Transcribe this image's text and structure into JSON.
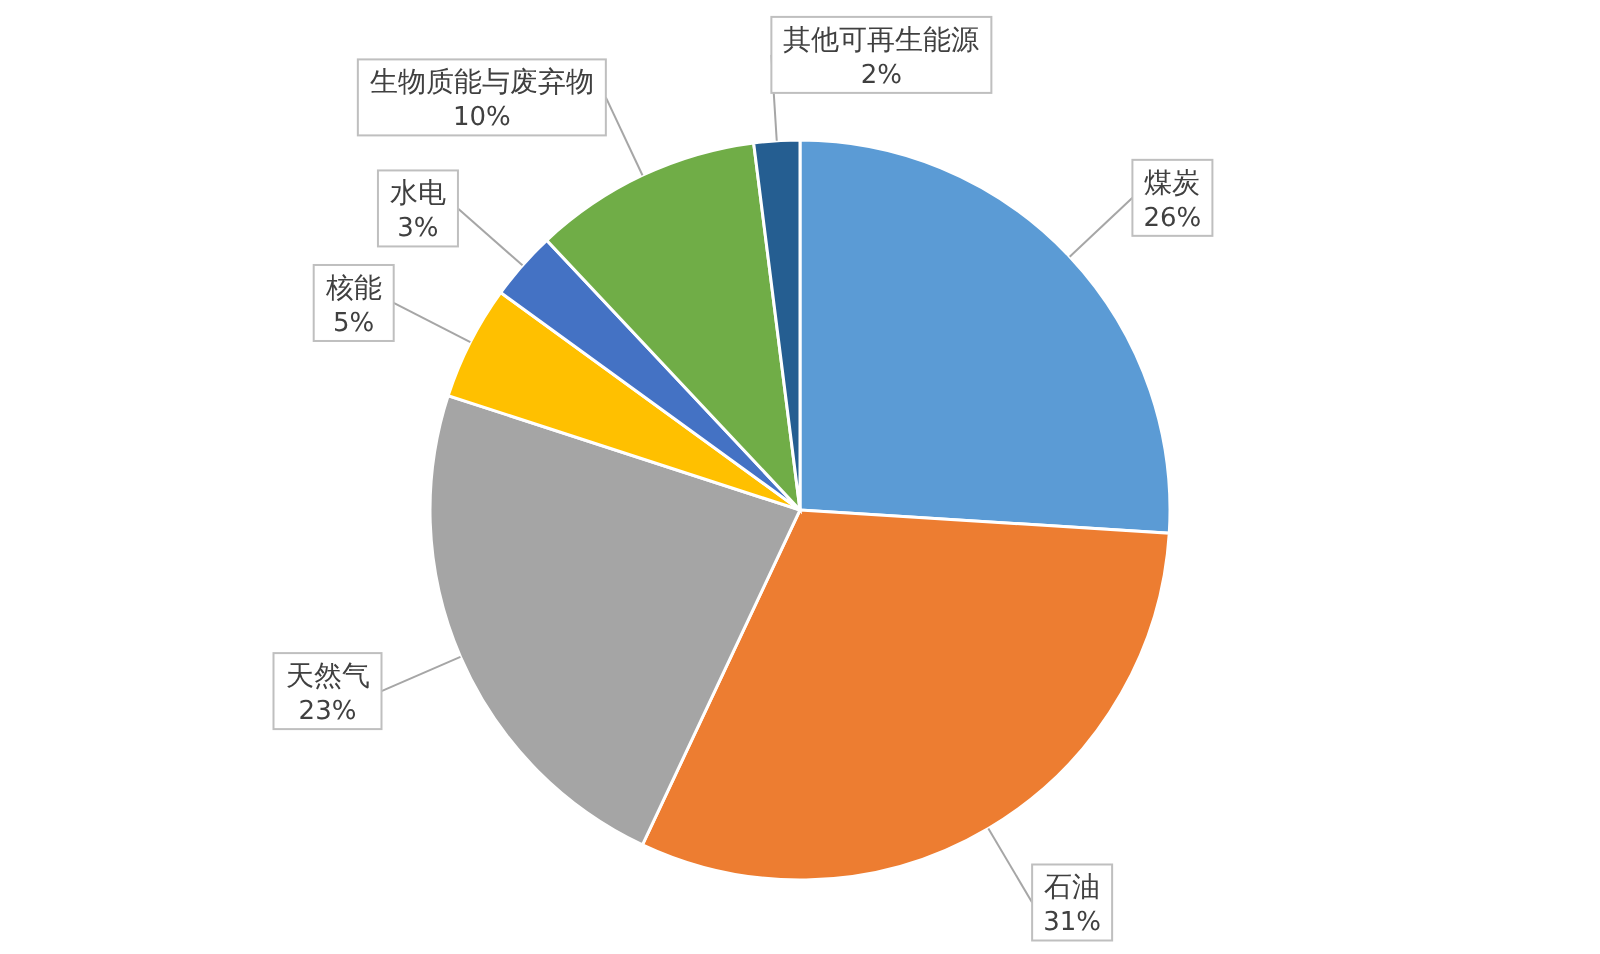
{
  "chart_data": {
    "type": "pie",
    "categories": [
      "煤炭",
      "石油",
      "天然气",
      "核能",
      "水电",
      "生物质能与废弃物",
      "其他可再生能源"
    ],
    "values": [
      26,
      31,
      23,
      5,
      3,
      10,
      2
    ],
    "colors": [
      "#5b9bd5",
      "#ed7d31",
      "#a5a5a5",
      "#ffc000",
      "#4472c4",
      "#70ad47",
      "#255e91"
    ],
    "value_labels": [
      "26%",
      "31%",
      "23%",
      "5%",
      "3%",
      "10%",
      "2%"
    ]
  }
}
